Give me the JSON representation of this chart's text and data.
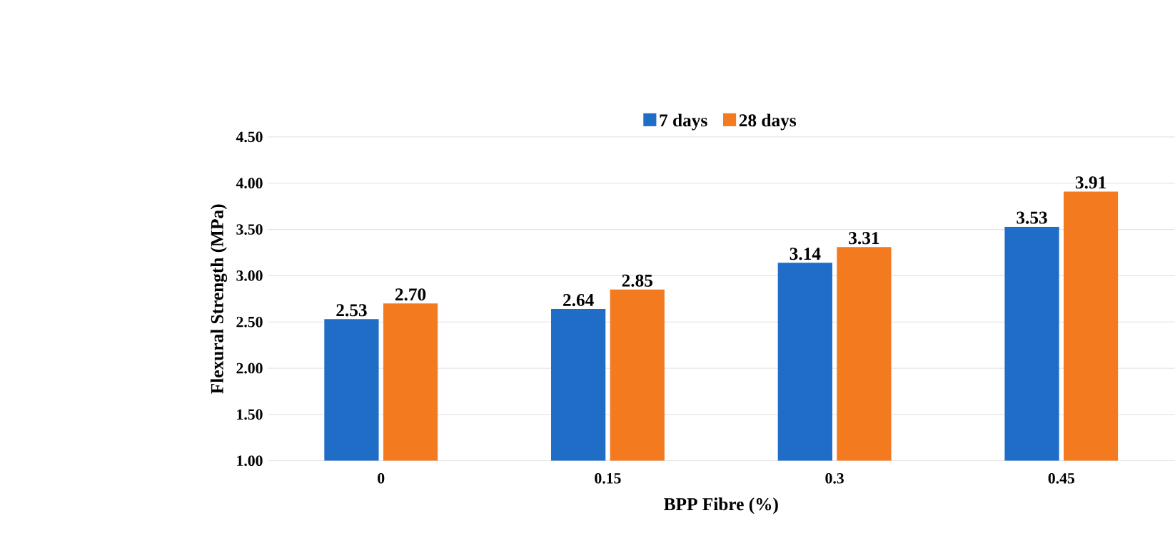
{
  "chart_data": {
    "type": "bar",
    "xlabel": "BPP Fibre (%)",
    "ylabel": "Flexural Strength (MPa)",
    "categories": [
      "0",
      "0.15",
      "0.3",
      "0.45"
    ],
    "series": [
      {
        "name": "7 days",
        "color": "#1f6dc6",
        "values": [
          2.53,
          2.64,
          3.14,
          3.53
        ],
        "value_labels": [
          "2.53",
          "2.64",
          "3.14",
          "3.53"
        ]
      },
      {
        "name": "28 days",
        "color": "#f47a20",
        "values": [
          2.7,
          2.85,
          3.31,
          3.91
        ],
        "value_labels": [
          "2.70",
          "2.85",
          "3.31",
          "3.91"
        ]
      }
    ],
    "ylim": [
      1,
      4.5
    ],
    "yticks": [
      {
        "value": 1,
        "label": "1.00"
      },
      {
        "value": 1.5,
        "label": "1.50"
      },
      {
        "value": 2,
        "label": "2.00"
      },
      {
        "value": 2.5,
        "label": "2.50"
      },
      {
        "value": 3,
        "label": "3.00"
      },
      {
        "value": 3.5,
        "label": "3.50"
      },
      {
        "value": 4,
        "label": "4.00"
      },
      {
        "value": 4.5,
        "label": "4.50"
      }
    ],
    "grid": "y",
    "legend": "top"
  }
}
